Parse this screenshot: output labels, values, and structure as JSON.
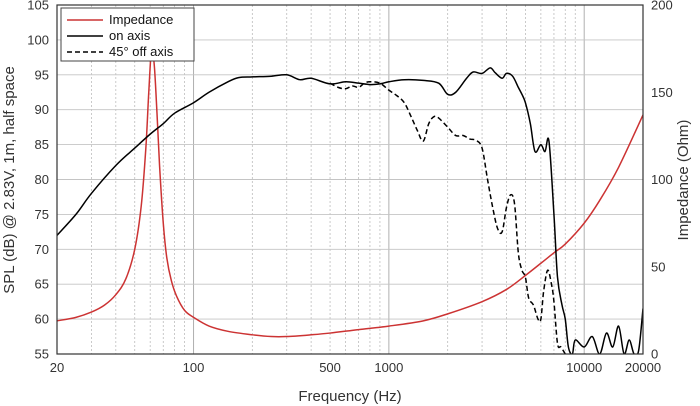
{
  "chart_data": {
    "type": "line",
    "x_scale": "log",
    "xlim": [
      20,
      20000
    ],
    "ylim_left": [
      55,
      105
    ],
    "ylim_right": [
      0,
      200
    ],
    "xlabel": "Frequency (Hz)",
    "ylabel_left": "SPL (dB) @ 2.83V, 1m, half space",
    "ylabel_right": "Impedance (Ohm)",
    "x_tick_labels": [
      "20",
      "100",
      "500",
      "1000",
      "10000",
      "20000"
    ],
    "x_ticks": [
      20,
      100,
      500,
      1000,
      10000,
      20000
    ],
    "y_left_ticks": [
      55,
      60,
      65,
      70,
      75,
      80,
      85,
      90,
      95,
      100,
      105
    ],
    "y_right_ticks": [
      0,
      50,
      100,
      150,
      200
    ],
    "grid": true,
    "legend_position": "top-left",
    "series": [
      {
        "name": "Impedance",
        "axis": "right",
        "color": "#cc3333",
        "dash": "solid",
        "x": [
          20,
          25,
          30,
          35,
          40,
          45,
          50,
          54,
          57,
          59,
          61,
          63,
          65,
          67,
          70,
          73,
          77,
          82,
          90,
          100,
          120,
          150,
          200,
          250,
          300,
          400,
          500,
          700,
          1000,
          1500,
          2000,
          3000,
          4000,
          5000,
          6000,
          7000,
          8000,
          10000,
          12000,
          15000,
          20000
        ],
        "y": [
          19,
          21,
          24,
          28,
          34,
          43,
          60,
          85,
          118,
          150,
          175,
          165,
          138,
          108,
          75,
          55,
          42,
          33,
          25,
          21,
          16,
          13,
          11,
          10,
          10,
          11,
          12,
          14,
          16,
          19,
          23,
          30,
          37,
          45,
          52,
          58,
          63,
          75,
          88,
          107,
          137
        ]
      },
      {
        "name": "on axis",
        "axis": "left",
        "color": "#000000",
        "dash": "solid",
        "x": [
          20,
          25,
          30,
          40,
          50,
          60,
          70,
          80,
          100,
          120,
          150,
          170,
          200,
          250,
          300,
          350,
          400,
          500,
          600,
          700,
          800,
          900,
          1000,
          1200,
          1500,
          1800,
          2000,
          2200,
          2500,
          2700,
          3000,
          3300,
          3500,
          3800,
          4000,
          4300,
          4600,
          4800,
          5000,
          5300,
          5600,
          6000,
          6300,
          6600,
          7000,
          7300,
          7700,
          8000,
          8300,
          8700,
          9000,
          10000,
          11000,
          12000,
          13000,
          14000,
          15000,
          16000,
          17000,
          18000,
          19000,
          20000
        ],
        "y": [
          72,
          75,
          78,
          82,
          84.5,
          86.5,
          88,
          89.5,
          91,
          92.5,
          94,
          94.6,
          94.7,
          94.8,
          95,
          94.3,
          94.5,
          93.7,
          94,
          93.8,
          93.6,
          93.7,
          94,
          94.3,
          94.2,
          93.8,
          92.2,
          92.5,
          94.5,
          95.4,
          95.2,
          96,
          95.3,
          94.5,
          95.2,
          94.8,
          93.2,
          92.2,
          91,
          88,
          84,
          85,
          84,
          85.5,
          75,
          66,
          62,
          60,
          56,
          55,
          57,
          56,
          57.5,
          55,
          58,
          56,
          59,
          55,
          57,
          55,
          55.5,
          61.5
        ]
      },
      {
        "name": "45° off axis",
        "axis": "left",
        "color": "#000000",
        "dash": "dashed",
        "x": [
          500,
          550,
          600,
          650,
          700,
          750,
          800,
          900,
          1000,
          1100,
          1200,
          1300,
          1400,
          1500,
          1600,
          1700,
          1800,
          2000,
          2200,
          2400,
          2600,
          2800,
          3000,
          3200,
          3400,
          3600,
          3800,
          4000,
          4200,
          4400,
          4600,
          4800,
          5000,
          5200,
          5500,
          5800,
          6000,
          6200,
          6500,
          6800,
          7000,
          7300,
          7600,
          8000
        ],
        "y": [
          93.8,
          93.2,
          93,
          93.4,
          93.2,
          93.8,
          94,
          93.8,
          92.8,
          92,
          91,
          89,
          87,
          85.5,
          88,
          89,
          88.8,
          87.5,
          86.3,
          86.3,
          85.8,
          85.6,
          84.5,
          80,
          76,
          73,
          72.5,
          76,
          77.8,
          76.5,
          69.5,
          67,
          66,
          63,
          62,
          60,
          60,
          64,
          67,
          65,
          62.5,
          56.5,
          56,
          55
        ]
      }
    ]
  }
}
